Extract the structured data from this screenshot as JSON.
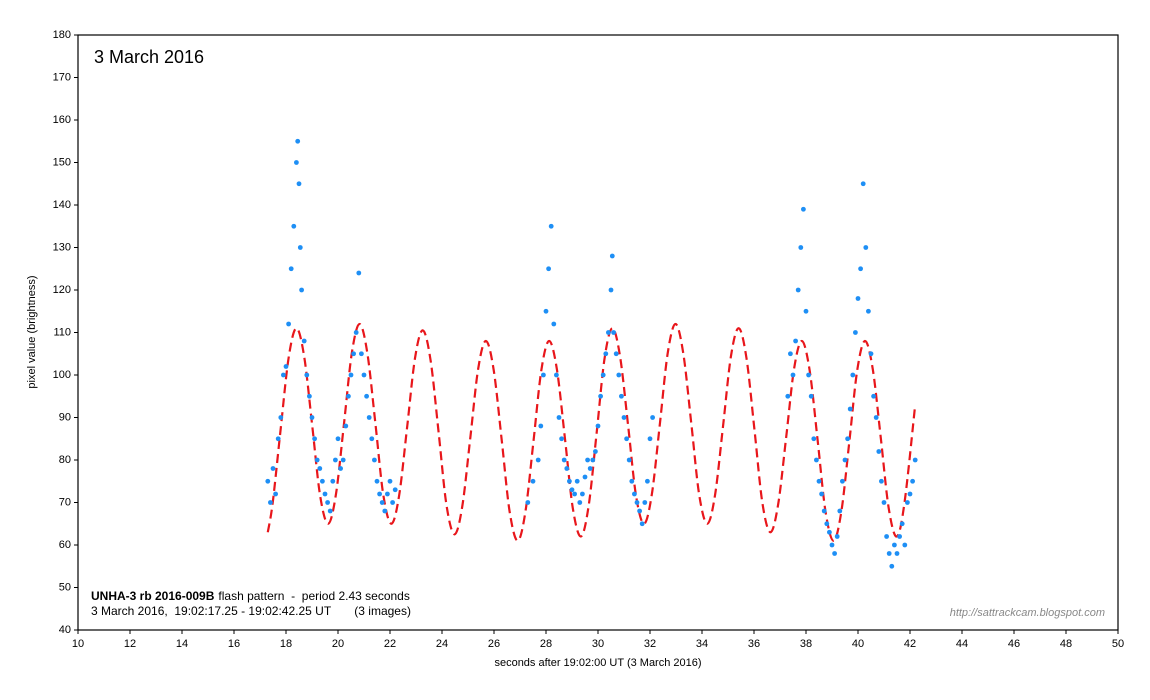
{
  "chart_data": {
    "type": "scatter",
    "title": "3 March 2016",
    "xlabel": "seconds after 19:02:00 UT (3 March 2016)",
    "ylabel": "pixel value (brightness)",
    "note_bold": "UNHA-3 rb 2016-009B",
    "note_rest": "flash pattern  -  period 2.43 seconds",
    "note_line2": "3 March 2016,  19:02:17.25 - 19:02:42.25 UT       (3 images)",
    "credit": "http://sattrackcam.blogspot.com",
    "xlim": [
      10,
      50
    ],
    "xticks": [
      10,
      12,
      14,
      16,
      18,
      20,
      22,
      24,
      26,
      28,
      30,
      32,
      34,
      36,
      38,
      40,
      42,
      44,
      46,
      48,
      50
    ],
    "ylim": [
      40,
      180
    ],
    "yticks": [
      40,
      50,
      60,
      70,
      80,
      90,
      100,
      110,
      120,
      130,
      140,
      150,
      160,
      170,
      180
    ],
    "scatter": {
      "color": "#1e8ff5",
      "x": [
        17.3,
        17.4,
        17.5,
        17.6,
        17.7,
        17.8,
        17.9,
        18.0,
        18.1,
        18.2,
        18.3,
        18.4,
        18.45,
        18.5,
        18.55,
        18.6,
        18.7,
        18.8,
        18.9,
        19.0,
        19.1,
        19.2,
        19.3,
        19.4,
        19.5,
        19.6,
        19.7,
        19.8,
        19.9,
        20.0,
        20.1,
        20.2,
        20.3,
        20.4,
        20.5,
        20.6,
        20.7,
        20.8,
        20.9,
        21.0,
        21.1,
        21.2,
        21.3,
        21.4,
        21.5,
        21.6,
        21.7,
        21.8,
        21.9,
        22.0,
        22.1,
        22.2,
        27.3,
        27.5,
        27.7,
        27.8,
        27.9,
        28.0,
        28.1,
        28.2,
        28.3,
        28.4,
        28.5,
        28.6,
        28.7,
        28.8,
        28.9,
        29.0,
        29.1,
        29.2,
        29.3,
        29.4,
        29.5,
        29.6,
        29.7,
        29.8,
        29.9,
        30.0,
        30.1,
        30.2,
        30.3,
        30.4,
        30.5,
        30.55,
        30.6,
        30.7,
        30.8,
        30.9,
        31.0,
        31.1,
        31.2,
        31.3,
        31.4,
        31.5,
        31.6,
        31.7,
        31.8,
        31.9,
        32.0,
        32.1,
        37.3,
        37.4,
        37.5,
        37.6,
        37.7,
        37.8,
        37.9,
        38.0,
        38.1,
        38.2,
        38.3,
        38.4,
        38.5,
        38.6,
        38.7,
        38.8,
        38.9,
        39.0,
        39.1,
        39.2,
        39.3,
        39.4,
        39.5,
        39.6,
        39.7,
        39.8,
        39.9,
        40.0,
        40.1,
        40.2,
        40.3,
        40.4,
        40.5,
        40.6,
        40.7,
        40.8,
        40.9,
        41.0,
        41.1,
        41.2,
        41.3,
        41.4,
        41.5,
        41.6,
        41.7,
        41.8,
        41.9,
        42.0,
        42.1,
        42.2
      ],
      "values": [
        75,
        70,
        78,
        72,
        85,
        90,
        100,
        102,
        112,
        125,
        135,
        150,
        155,
        145,
        130,
        120,
        108,
        100,
        95,
        90,
        85,
        80,
        78,
        75,
        72,
        70,
        68,
        75,
        80,
        85,
        78,
        80,
        88,
        95,
        100,
        105,
        110,
        124,
        105,
        100,
        95,
        90,
        85,
        80,
        75,
        72,
        70,
        68,
        72,
        75,
        70,
        73,
        70,
        75,
        80,
        88,
        100,
        115,
        125,
        135,
        112,
        100,
        90,
        85,
        80,
        78,
        75,
        73,
        72,
        75,
        70,
        72,
        76,
        80,
        78,
        80,
        82,
        88,
        95,
        100,
        105,
        110,
        120,
        128,
        110,
        105,
        100,
        95,
        90,
        85,
        80,
        75,
        72,
        70,
        68,
        65,
        70,
        75,
        85,
        90,
        95,
        105,
        100,
        108,
        120,
        130,
        139,
        115,
        100,
        95,
        85,
        80,
        75,
        72,
        68,
        65,
        63,
        60,
        58,
        62,
        68,
        75,
        80,
        85,
        92,
        100,
        110,
        118,
        125,
        145,
        130,
        115,
        105,
        95,
        90,
        82,
        75,
        70,
        62,
        58,
        55,
        60,
        58,
        62,
        65,
        60,
        70,
        72,
        75,
        80
      ]
    },
    "fit": {
      "color": "#e8161b",
      "style": "dashed",
      "x": [
        17.3,
        17.49,
        17.79,
        18.1,
        18.4,
        18.7,
        19.01,
        19.31,
        19.62,
        19.92,
        20.23,
        20.53,
        20.83,
        21.13,
        21.44,
        21.74,
        22.05,
        22.35,
        22.66,
        22.96,
        23.26,
        23.56,
        23.87,
        24.17,
        24.48,
        24.78,
        25.09,
        25.39,
        25.69,
        25.99,
        26.3,
        26.6,
        26.91,
        27.21,
        27.52,
        27.82,
        28.12,
        28.42,
        28.73,
        29.03,
        29.34,
        29.64,
        29.95,
        30.25,
        30.55,
        30.85,
        31.16,
        31.46,
        31.77,
        32.07,
        32.38,
        32.68,
        32.98,
        33.28,
        33.59,
        33.89,
        34.2,
        34.5,
        34.81,
        35.11,
        35.41,
        35.71,
        36.02,
        36.32,
        36.63,
        36.93,
        37.24,
        37.54,
        37.84,
        38.14,
        38.45,
        38.75,
        39.06,
        39.36,
        39.67,
        39.97,
        40.27,
        40.57,
        40.88,
        41.18,
        41.49,
        41.79,
        42.2
      ],
      "values": [
        63,
        70.0,
        87,
        104.0,
        111,
        104.3,
        88,
        71.7,
        65,
        71.9,
        88.5,
        105.1,
        112,
        105.1,
        88.5,
        71.9,
        65,
        71.6,
        87.8,
        103.9,
        110.5,
        103.5,
        86.5,
        69.5,
        62.5,
        69.1,
        85.3,
        101.4,
        108,
        101.1,
        84.5,
        67.9,
        61,
        67.9,
        84.5,
        101.1,
        108,
        101.3,
        85,
        68.7,
        62,
        69.2,
        86.5,
        103.8,
        111,
        104.3,
        88,
        71.7,
        65,
        71.9,
        88.5,
        105.1,
        112,
        105.1,
        88.5,
        71.9,
        65,
        71.7,
        88,
        104.3,
        111,
        104.0,
        87,
        70.0,
        63,
        69.6,
        85.5,
        101.4,
        108,
        101.1,
        84.5,
        67.9,
        61,
        67.9,
        84.5,
        101.1,
        108,
        101.3,
        85,
        68.7,
        62,
        70,
        93
      ]
    }
  }
}
